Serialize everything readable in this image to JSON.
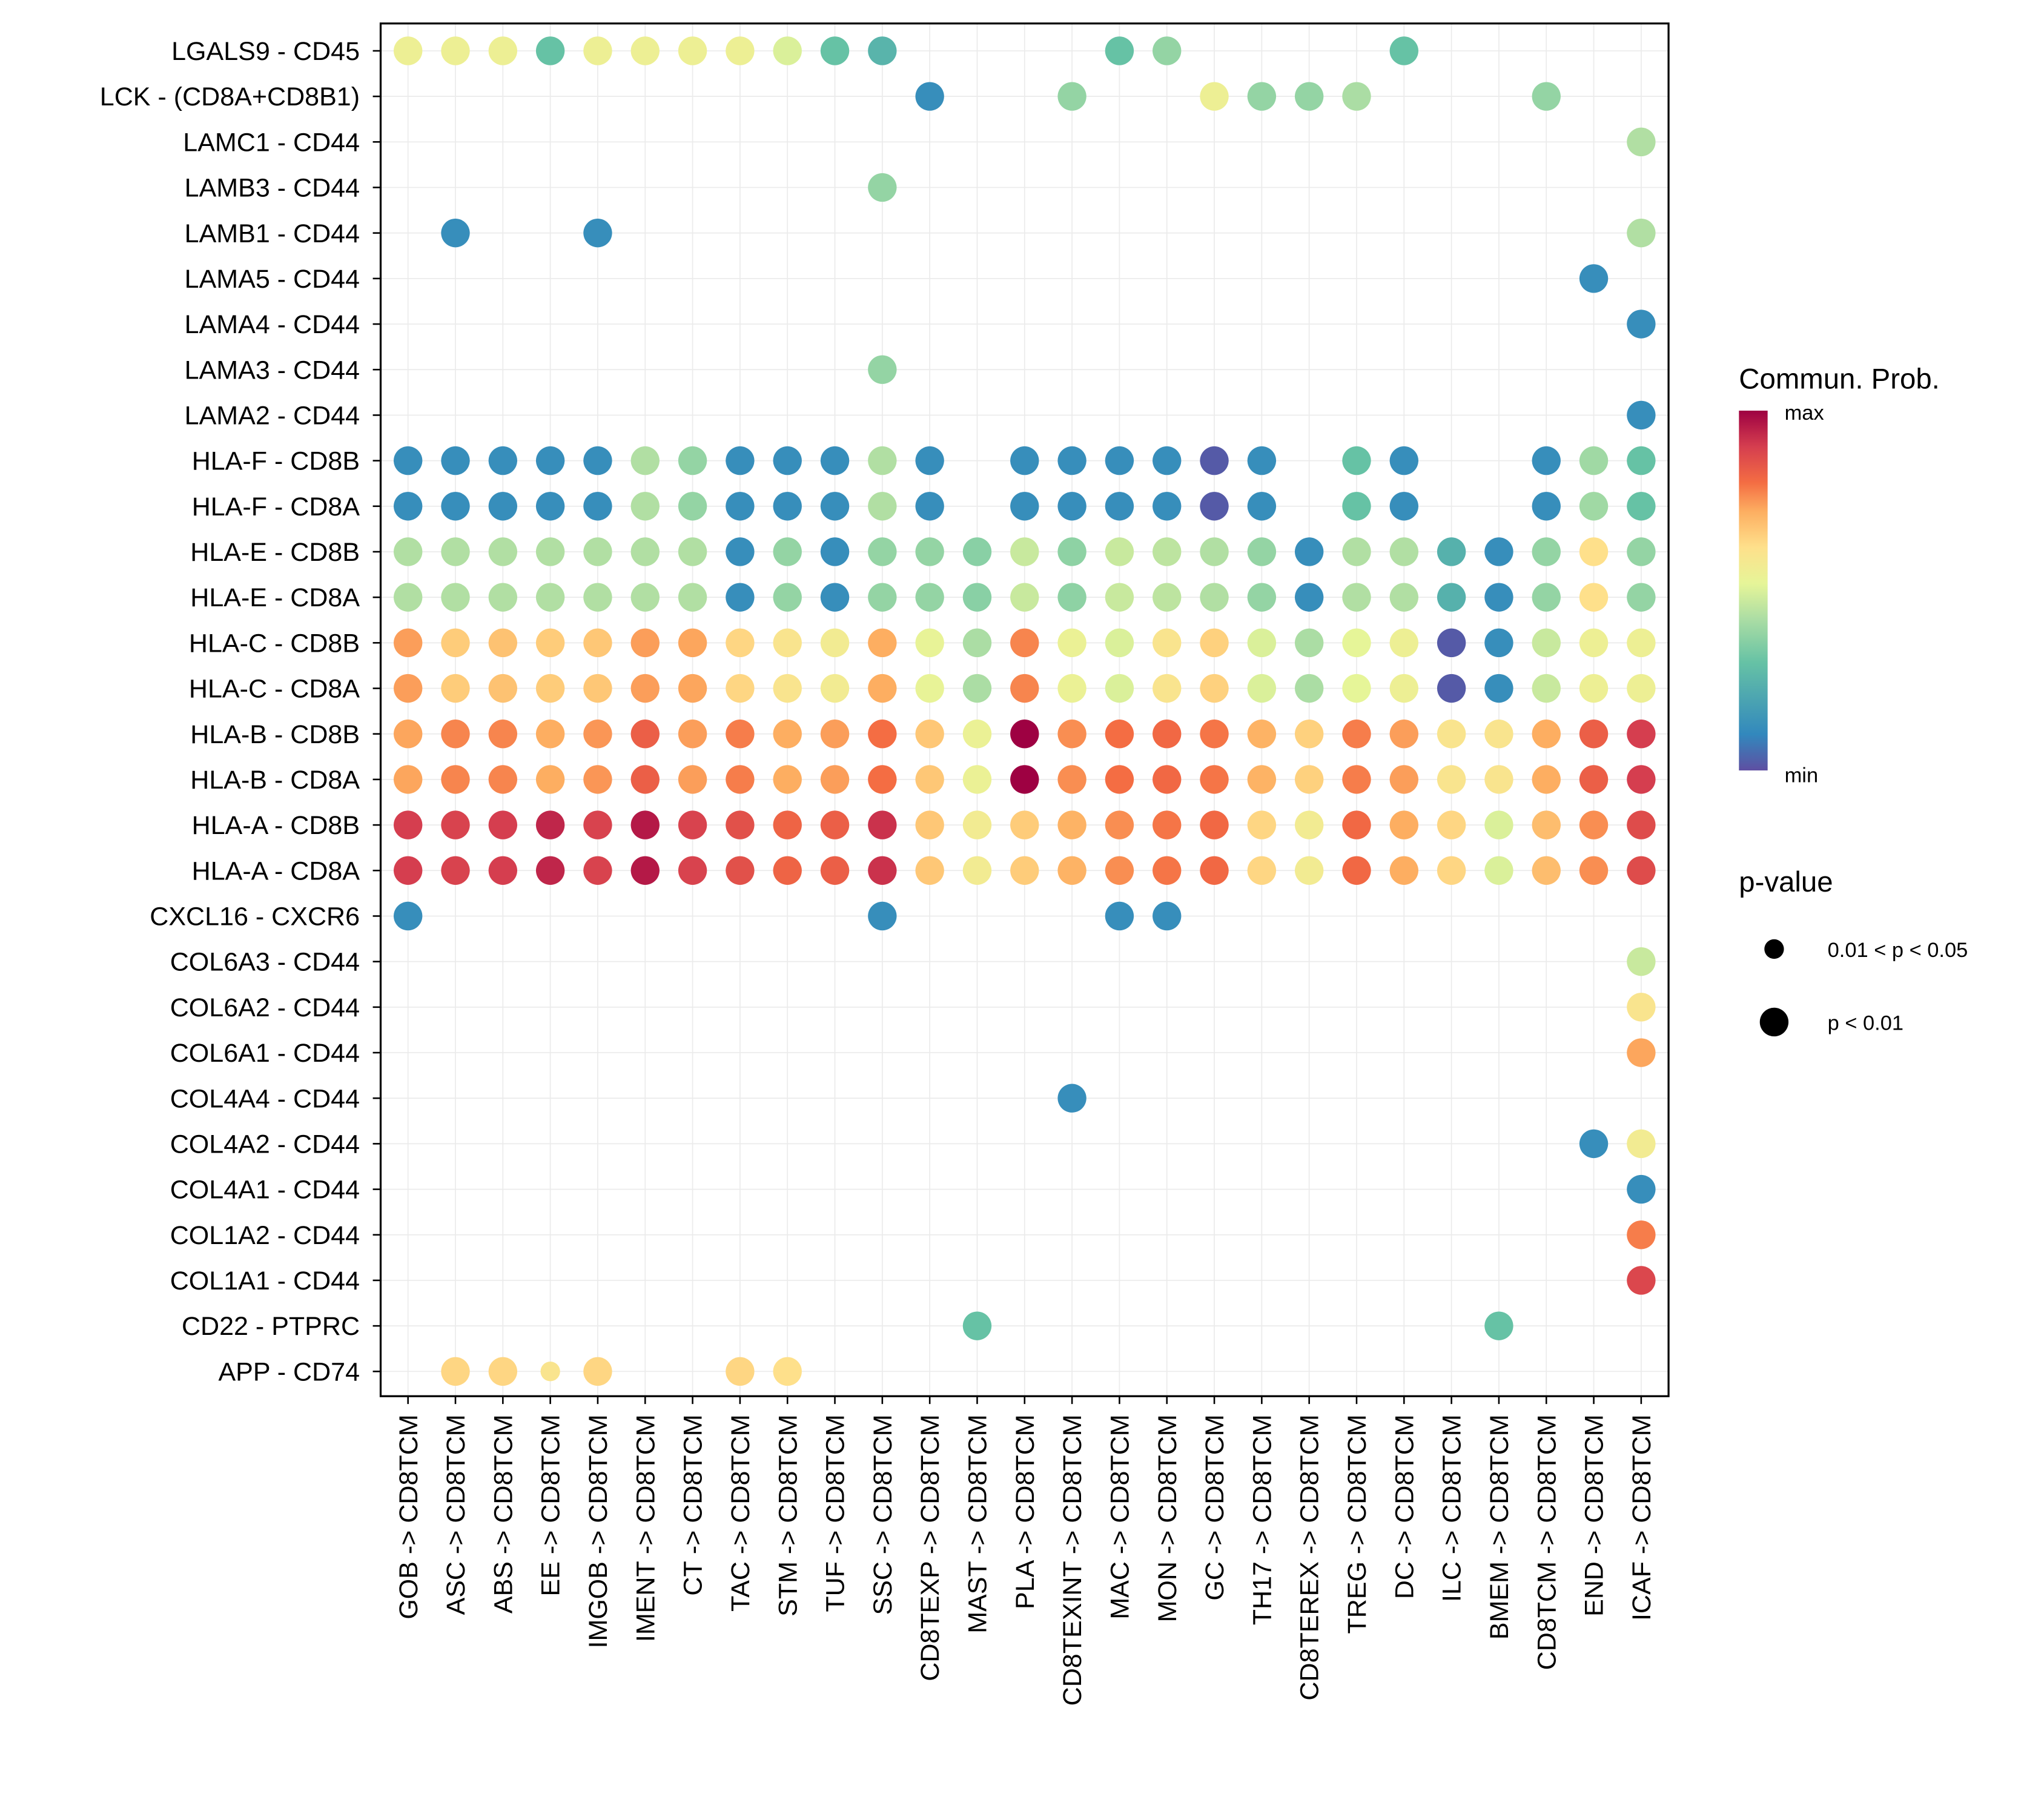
{
  "chart_data": {
    "type": "scatter",
    "subtype": "dot-plot",
    "title": "",
    "xlabel": "",
    "ylabel": "",
    "grid": true,
    "x": [
      "GOB -> CD8TCM",
      "ASC -> CD8TCM",
      "ABS -> CD8TCM",
      "EE -> CD8TCM",
      "IMGOB -> CD8TCM",
      "IMENT -> CD8TCM",
      "CT -> CD8TCM",
      "TAC -> CD8TCM",
      "STM -> CD8TCM",
      "TUF -> CD8TCM",
      "SSC -> CD8TCM",
      "CD8TEXP -> CD8TCM",
      "MAST -> CD8TCM",
      "PLA -> CD8TCM",
      "CD8TEXINT -> CD8TCM",
      "MAC -> CD8TCM",
      "MON -> CD8TCM",
      "GC -> CD8TCM",
      "TH17 -> CD8TCM",
      "CD8TEREX -> CD8TCM",
      "TREG -> CD8TCM",
      "DC -> CD8TCM",
      "ILC -> CD8TCM",
      "BMEM -> CD8TCM",
      "CD8TCM -> CD8TCM",
      "END -> CD8TCM",
      "ICAF -> CD8TCM"
    ],
    "y": [
      "LGALS9 - CD45",
      "LCK - (CD8A+CD8B1)",
      "LAMC1 - CD44",
      "LAMB3 - CD44",
      "LAMB1 - CD44",
      "LAMA5 - CD44",
      "LAMA4 - CD44",
      "LAMA3 - CD44",
      "LAMA2 - CD44",
      "HLA-F - CD8B",
      "HLA-F - CD8A",
      "HLA-E - CD8B",
      "HLA-E - CD8A",
      "HLA-C - CD8B",
      "HLA-C - CD8A",
      "HLA-B - CD8B",
      "HLA-B - CD8A",
      "HLA-A - CD8B",
      "HLA-A - CD8A",
      "CXCL16 - CXCR6",
      "COL6A3 - CD44",
      "COL6A2 - CD44",
      "COL6A1 - CD44",
      "COL4A4 - CD44",
      "COL4A2 - CD44",
      "COL4A1 - CD44",
      "COL1A2 - CD44",
      "COL1A1 - CD44",
      "CD22 - PTPRC",
      "APP - CD74"
    ],
    "value_scale": "0 = min, 1 = max (Commun. Prob., normalized)",
    "values": [
      [
        0.55,
        0.55,
        0.55,
        0.3,
        0.55,
        0.55,
        0.55,
        0.55,
        0.5,
        0.3,
        0.25,
        null,
        null,
        null,
        null,
        0.3,
        0.38,
        null,
        null,
        null,
        null,
        0.3,
        null,
        null,
        null,
        null,
        null
      ],
      [
        null,
        null,
        null,
        null,
        null,
        null,
        null,
        null,
        null,
        null,
        null,
        0.12,
        null,
        null,
        0.38,
        null,
        null,
        0.55,
        0.38,
        0.38,
        0.42,
        null,
        null,
        null,
        0.38,
        null,
        null
      ],
      [
        null,
        null,
        null,
        null,
        null,
        null,
        null,
        null,
        null,
        null,
        null,
        null,
        null,
        null,
        null,
        null,
        null,
        null,
        null,
        null,
        null,
        null,
        null,
        null,
        null,
        null,
        0.43
      ],
      [
        null,
        null,
        null,
        null,
        null,
        null,
        null,
        null,
        null,
        null,
        0.38,
        null,
        null,
        null,
        null,
        null,
        null,
        null,
        null,
        null,
        null,
        null,
        null,
        null,
        null,
        null,
        null
      ],
      [
        null,
        0.12,
        null,
        null,
        0.12,
        null,
        null,
        null,
        null,
        null,
        null,
        null,
        null,
        null,
        null,
        null,
        null,
        null,
        null,
        null,
        null,
        null,
        null,
        null,
        null,
        null,
        0.43
      ],
      [
        null,
        null,
        null,
        null,
        null,
        null,
        null,
        null,
        null,
        null,
        null,
        null,
        null,
        null,
        null,
        null,
        null,
        null,
        null,
        null,
        null,
        null,
        null,
        null,
        null,
        0.12,
        null
      ],
      [
        null,
        null,
        null,
        null,
        null,
        null,
        null,
        null,
        null,
        null,
        null,
        null,
        null,
        null,
        null,
        null,
        null,
        null,
        null,
        null,
        null,
        null,
        null,
        null,
        null,
        null,
        0.12
      ],
      [
        null,
        null,
        null,
        null,
        null,
        null,
        null,
        null,
        null,
        null,
        0.38,
        null,
        null,
        null,
        null,
        null,
        null,
        null,
        null,
        null,
        null,
        null,
        null,
        null,
        null,
        null,
        null
      ],
      [
        null,
        null,
        null,
        null,
        null,
        null,
        null,
        null,
        null,
        null,
        null,
        null,
        null,
        null,
        null,
        null,
        null,
        null,
        null,
        null,
        null,
        null,
        null,
        null,
        null,
        null,
        0.12
      ],
      [
        0.12,
        0.12,
        0.12,
        0.12,
        0.12,
        0.43,
        0.38,
        0.12,
        0.12,
        0.12,
        0.43,
        0.12,
        null,
        0.12,
        0.12,
        0.12,
        0.12,
        0.02,
        0.12,
        null,
        0.3,
        0.12,
        null,
        null,
        0.12,
        0.4,
        0.3
      ],
      [
        0.12,
        0.12,
        0.12,
        0.12,
        0.12,
        0.43,
        0.38,
        0.12,
        0.12,
        0.12,
        0.43,
        0.12,
        null,
        0.12,
        0.12,
        0.12,
        0.12,
        0.02,
        0.12,
        null,
        0.3,
        0.12,
        null,
        null,
        0.12,
        0.4,
        0.3
      ],
      [
        0.43,
        0.43,
        0.43,
        0.43,
        0.43,
        0.43,
        0.43,
        0.12,
        0.38,
        0.12,
        0.38,
        0.38,
        0.36,
        0.47,
        0.37,
        0.47,
        0.45,
        0.43,
        0.38,
        0.12,
        0.43,
        0.43,
        0.24,
        0.12,
        0.38,
        0.62,
        0.38
      ],
      [
        0.43,
        0.43,
        0.43,
        0.43,
        0.43,
        0.43,
        0.43,
        0.12,
        0.38,
        0.12,
        0.38,
        0.38,
        0.36,
        0.47,
        0.37,
        0.47,
        0.45,
        0.43,
        0.38,
        0.12,
        0.43,
        0.43,
        0.24,
        0.12,
        0.38,
        0.62,
        0.38
      ],
      [
        0.74,
        0.66,
        0.68,
        0.66,
        0.67,
        0.74,
        0.73,
        0.64,
        0.6,
        0.57,
        0.72,
        0.53,
        0.42,
        0.77,
        0.54,
        0.5,
        0.6,
        0.65,
        0.5,
        0.42,
        0.52,
        0.55,
        0.02,
        0.12,
        0.47,
        0.55,
        0.55
      ],
      [
        0.74,
        0.66,
        0.68,
        0.66,
        0.67,
        0.74,
        0.73,
        0.64,
        0.6,
        0.57,
        0.72,
        0.53,
        0.42,
        0.77,
        0.54,
        0.5,
        0.6,
        0.65,
        0.5,
        0.42,
        0.52,
        0.55,
        0.02,
        0.12,
        0.47,
        0.55,
        0.55
      ],
      [
        0.73,
        0.77,
        0.77,
        0.72,
        0.75,
        0.83,
        0.74,
        0.78,
        0.72,
        0.74,
        0.8,
        0.67,
        0.54,
        1.0,
        0.76,
        0.8,
        0.81,
        0.79,
        0.71,
        0.65,
        0.78,
        0.74,
        0.6,
        0.6,
        0.72,
        0.83,
        0.9
      ],
      [
        0.73,
        0.77,
        0.77,
        0.72,
        0.75,
        0.83,
        0.74,
        0.78,
        0.72,
        0.74,
        0.8,
        0.67,
        0.54,
        1.0,
        0.76,
        0.8,
        0.81,
        0.79,
        0.71,
        0.65,
        0.78,
        0.74,
        0.6,
        0.6,
        0.72,
        0.83,
        0.9
      ],
      [
        0.9,
        0.89,
        0.9,
        0.94,
        0.89,
        0.96,
        0.89,
        0.86,
        0.82,
        0.83,
        0.92,
        0.67,
        0.57,
        0.66,
        0.71,
        0.76,
        0.79,
        0.81,
        0.64,
        0.57,
        0.81,
        0.72,
        0.64,
        0.5,
        0.69,
        0.76,
        0.87
      ],
      [
        0.9,
        0.89,
        0.9,
        0.94,
        0.89,
        0.96,
        0.89,
        0.86,
        0.82,
        0.83,
        0.92,
        0.67,
        0.57,
        0.66,
        0.71,
        0.76,
        0.79,
        0.81,
        0.64,
        0.57,
        0.81,
        0.72,
        0.64,
        0.5,
        0.69,
        0.76,
        0.87
      ],
      [
        0.12,
        null,
        null,
        null,
        null,
        null,
        null,
        null,
        null,
        null,
        0.12,
        null,
        null,
        null,
        null,
        0.12,
        0.12,
        null,
        null,
        null,
        null,
        null,
        null,
        null,
        null,
        null,
        null
      ],
      [
        null,
        null,
        null,
        null,
        null,
        null,
        null,
        null,
        null,
        null,
        null,
        null,
        null,
        null,
        null,
        null,
        null,
        null,
        null,
        null,
        null,
        null,
        null,
        null,
        null,
        null,
        0.47
      ],
      [
        null,
        null,
        null,
        null,
        null,
        null,
        null,
        null,
        null,
        null,
        null,
        null,
        null,
        null,
        null,
        null,
        null,
        null,
        null,
        null,
        null,
        null,
        null,
        null,
        null,
        null,
        0.6
      ],
      [
        null,
        null,
        null,
        null,
        null,
        null,
        null,
        null,
        null,
        null,
        null,
        null,
        null,
        null,
        null,
        null,
        null,
        null,
        null,
        null,
        null,
        null,
        null,
        null,
        null,
        null,
        0.73
      ],
      [
        null,
        null,
        null,
        null,
        null,
        null,
        null,
        null,
        null,
        null,
        null,
        null,
        null,
        null,
        0.12,
        null,
        null,
        null,
        null,
        null,
        null,
        null,
        null,
        null,
        null,
        null,
        null
      ],
      [
        null,
        null,
        null,
        null,
        null,
        null,
        null,
        null,
        null,
        null,
        null,
        null,
        null,
        null,
        null,
        null,
        null,
        null,
        null,
        null,
        null,
        null,
        null,
        null,
        null,
        0.12,
        0.57
      ],
      [
        null,
        null,
        null,
        null,
        null,
        null,
        null,
        null,
        null,
        null,
        null,
        null,
        null,
        null,
        null,
        null,
        null,
        null,
        null,
        null,
        null,
        null,
        null,
        null,
        null,
        null,
        0.12
      ],
      [
        null,
        null,
        null,
        null,
        null,
        null,
        null,
        null,
        null,
        null,
        null,
        null,
        null,
        null,
        null,
        null,
        null,
        null,
        null,
        null,
        null,
        null,
        null,
        null,
        null,
        null,
        0.78
      ],
      [
        null,
        null,
        null,
        null,
        null,
        null,
        null,
        null,
        null,
        null,
        null,
        null,
        null,
        null,
        null,
        null,
        null,
        null,
        null,
        null,
        null,
        null,
        null,
        null,
        null,
        null,
        0.88
      ],
      [
        null,
        null,
        null,
        null,
        null,
        null,
        null,
        null,
        null,
        null,
        null,
        null,
        0.3,
        null,
        null,
        null,
        null,
        null,
        null,
        null,
        null,
        null,
        null,
        0.3,
        null,
        null,
        null
      ],
      [
        null,
        0.64,
        0.64,
        0.6,
        0.64,
        null,
        null,
        0.64,
        0.62,
        null,
        null,
        null,
        null,
        null,
        null,
        null,
        null,
        null,
        null,
        null,
        null,
        null,
        null,
        null,
        null,
        null,
        null
      ]
    ],
    "pvalue_small_cells": [
      [
        29,
        3
      ]
    ],
    "pvalue_note": "All dots are p < 0.01 except those listed in pvalue_small_cells ([row, col]) which are 0.01 < p < 0.05",
    "colormap": [
      "#5E4FA2",
      "#3288BD",
      "#66C2A5",
      "#ABDDA4",
      "#E6F598",
      "#FEE08B",
      "#FDAE61",
      "#F46D43",
      "#D53E4F",
      "#9E0142"
    ],
    "legend": {
      "color_title": "Commun. Prob.",
      "color_max_label": "max",
      "color_min_label": "min",
      "size_title": "p-value",
      "size_entries": [
        "0.01 < p < 0.05",
        "p < 0.01"
      ],
      "placement": "right"
    }
  }
}
